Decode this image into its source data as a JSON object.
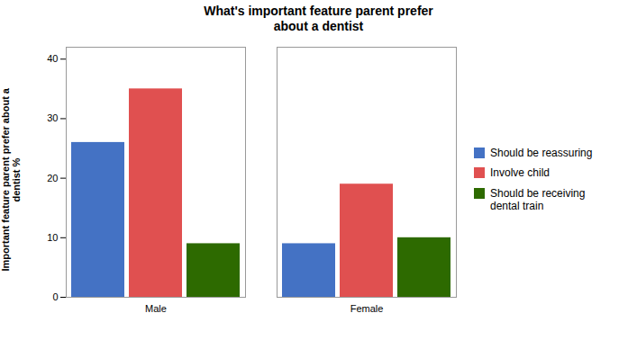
{
  "chart_data": {
    "type": "bar",
    "title": "What's important feature parent prefer\nabout a dentist",
    "ylabel": "Important feature parent prefer about a\ndentist %",
    "categories": [
      "Male",
      "Female"
    ],
    "series": [
      {
        "name": "Should be reassuring",
        "color": "#4472C4",
        "values": [
          26,
          9
        ]
      },
      {
        "name": "Involve child",
        "color": "#E05050",
        "values": [
          35,
          19
        ]
      },
      {
        "name": "Should be receiving\ndental train",
        "color": "#2D6A00",
        "values": [
          9,
          10
        ]
      }
    ],
    "ylim": [
      0,
      42
    ],
    "yticks": [
      0,
      10,
      20,
      30,
      40
    ],
    "grid": false,
    "legend": "right"
  }
}
